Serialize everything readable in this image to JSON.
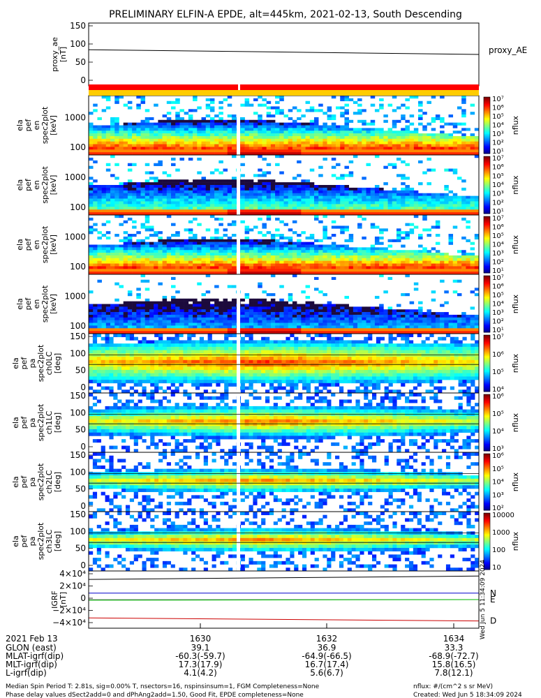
{
  "title": "PRELIMINARY ELFIN-A EPDE, alt=445km, 2021-02-13, South Descending",
  "chart_data": [
    {
      "type": "line",
      "name": "proxy_ae",
      "ylabel_lines": [
        "proxy_ae",
        "[nT]"
      ],
      "yticks": [
        "150",
        "100",
        "50",
        "0"
      ],
      "ylim": [
        0,
        150
      ],
      "series": [
        {
          "name": "proxy_AE",
          "x": [
            0,
            1
          ],
          "values": [
            88,
            75
          ]
        }
      ]
    },
    {
      "type": "heatmap",
      "name": "en-pa-1",
      "ylabel_lines": [
        "ela",
        "pef",
        "en",
        "spec2plot",
        "[keV]"
      ],
      "yticks": [
        "1000",
        "100"
      ],
      "colorbar_label": "nflux",
      "colorbar_ticks": [
        "10⁷",
        "10⁶",
        "10⁵",
        "10⁴",
        "10³",
        "10²",
        "10¹"
      ]
    },
    {
      "type": "heatmap",
      "name": "en-pa-2",
      "ylabel_lines": [
        "ela",
        "pef",
        "en",
        "spec2plot",
        "[keV]"
      ],
      "yticks": [
        "1000",
        "100"
      ],
      "colorbar_label": "nflux",
      "colorbar_ticks": [
        "10⁷",
        "10⁶",
        "10⁵",
        "10⁴",
        "10³",
        "10²",
        "10¹"
      ]
    },
    {
      "type": "heatmap",
      "name": "en-pa-3",
      "ylabel_lines": [
        "ela",
        "pef",
        "en",
        "spec2plot",
        "[keV]"
      ],
      "yticks": [
        "1000",
        "100"
      ],
      "colorbar_label": "nflux",
      "colorbar_ticks": [
        "10⁷",
        "10⁶",
        "10⁵",
        "10⁴",
        "10³",
        "10²",
        "10¹"
      ]
    },
    {
      "type": "heatmap",
      "name": "en-pa-4",
      "ylabel_lines": [
        "ela",
        "pef",
        "en",
        "spec2plot",
        "[keV]"
      ],
      "yticks": [
        "1000",
        "100"
      ],
      "colorbar_label": "nflux",
      "colorbar_ticks": [
        "10⁷",
        "10⁶",
        "10⁵",
        "10⁴",
        "10³",
        "10²",
        "10¹"
      ]
    },
    {
      "type": "heatmap",
      "name": "ch0LC",
      "ylabel_lines": [
        "ela",
        "pef",
        "pa",
        "spec2plot",
        "ch0LC",
        "[deg]"
      ],
      "yticks": [
        "150",
        "100",
        "50",
        "0"
      ],
      "colorbar_label": "nflux",
      "colorbar_ticks": [
        "10⁷",
        "10⁶",
        "10⁵",
        "10⁴"
      ]
    },
    {
      "type": "heatmap",
      "name": "ch1LC",
      "ylabel_lines": [
        "ela",
        "pef",
        "pa",
        "spec2plot",
        "ch1LC",
        "[deg]"
      ],
      "yticks": [
        "150",
        "100",
        "50",
        "0"
      ],
      "colorbar_label": "nflux",
      "colorbar_ticks": [
        "10⁶",
        "10⁵",
        "10⁴",
        "10³"
      ]
    },
    {
      "type": "heatmap",
      "name": "ch2LC",
      "ylabel_lines": [
        "ela",
        "pef",
        "pa",
        "spec2plot",
        "ch2LC",
        "[deg]"
      ],
      "yticks": [
        "150",
        "100",
        "50",
        "0"
      ],
      "colorbar_label": "nflux",
      "colorbar_ticks": [
        "10⁶",
        "10⁵",
        "10⁴",
        "10³",
        "10²"
      ]
    },
    {
      "type": "heatmap",
      "name": "ch3LC",
      "ylabel_lines": [
        "ela",
        "pef",
        "pa",
        "spec2plot",
        "ch3LC",
        "[deg]"
      ],
      "yticks": [
        "150",
        "100",
        "50",
        "0"
      ],
      "colorbar_label": "nflux",
      "colorbar_ticks": [
        "10000",
        "1000",
        "100",
        "10"
      ]
    },
    {
      "type": "line",
      "name": "IGRF",
      "ylabel_lines": [
        "IGRF",
        "[nT]"
      ],
      "yticks": [
        "4×10⁴",
        "2×10⁴",
        "0",
        "−2×10⁴",
        "−4×10⁴"
      ],
      "ylim": [
        -40000,
        40000
      ],
      "series": [
        {
          "name": "",
          "x": [
            0,
            1
          ],
          "values": [
            33000,
            38500
          ]
        },
        {
          "name": "N",
          "x": [
            0,
            1
          ],
          "values": [
            10500,
            10500
          ]
        },
        {
          "name": "E",
          "x": [
            0,
            1
          ],
          "values": [
            -1000,
            0
          ]
        },
        {
          "name": "D",
          "x": [
            0,
            1
          ],
          "values": [
            -30000,
            -35000
          ]
        }
      ],
      "series_colors": [
        "#000000",
        "#0000cc",
        "#00bb00",
        "#cc0000"
      ]
    }
  ],
  "xaxis": {
    "date": "2021 Feb 13",
    "ticks": [
      "1630",
      "1632",
      "1634"
    ],
    "rows": [
      {
        "label": "GLON (east)",
        "values": [
          "39.1",
          "36.9",
          "33.3"
        ]
      },
      {
        "label": "MLAT-igrf(dip)",
        "values": [
          "-60.3(-59.7)",
          "-64.9(-66.5)",
          "-68.9(-72.7)"
        ]
      },
      {
        "label": "MLT-igrf(dip)",
        "values": [
          "17.3(17.9)",
          "16.7(17.4)",
          "15.8(16.5)"
        ]
      },
      {
        "label": "L-igrf(dip)",
        "values": [
          "4.1(4.2)",
          "5.6(6.7)",
          "7.8(12.1)"
        ]
      }
    ]
  },
  "footer": {
    "line1_left": "Median Spin Period T: 2.81s, sig=0.00% T, nsectors=16, nspinsinsum=1, FGM Completeness=None",
    "line2_left": "Phase delay values dSect2add=0 and dPhAng2add=1.50, Good Fit, EPDE completeness=None",
    "line1_right": "nflux: #/(cm^2 s sr MeV)",
    "line2_right": "Created: Wed Jun  5 18:34:09 2024"
  },
  "side_stamp": "Wed Jun  5 11:34:09 2024",
  "colors": {
    "orbit_red": "#ff0000",
    "orbit_yellow": "#ffcc00"
  }
}
